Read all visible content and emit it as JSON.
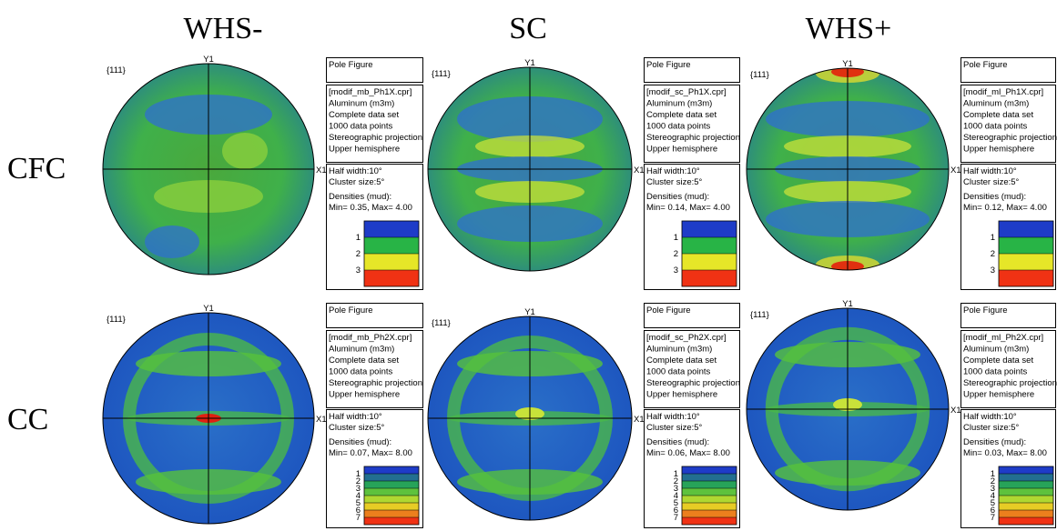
{
  "columns": [
    "WHS-",
    "SC",
    "WHS+"
  ],
  "rows": [
    {
      "label": "CFC",
      "panels": [
        {
          "set_label": "{111}",
          "y_axis": "Y1",
          "x_axis": "X1",
          "title": "Pole Figure",
          "info": [
            "[modif_mb_Ph1X.cpr]",
            "Aluminum (m3m)",
            "Complete data set",
            "1000 data points",
            "Stereographic projection",
            "Upper hemisphere"
          ],
          "params": [
            "Half width:10°",
            "Cluster size:5°"
          ],
          "densities_label": "Densities (mud):",
          "densities": "Min= 0.35, Max= 4.00",
          "legend": [
            1,
            2,
            3
          ]
        },
        {
          "set_label": "{111}",
          "y_axis": "Y1",
          "x_axis": "X1",
          "title": "Pole Figure",
          "info": [
            "[modif_sc_Ph1X.cpr]",
            "Aluminum (m3m)",
            "Complete data set",
            "1000 data points",
            "Stereographic projection",
            "Upper hemisphere"
          ],
          "params": [
            "Half width:10°",
            "Cluster size:5°"
          ],
          "densities_label": "Densities (mud):",
          "densities": "Min= 0.14, Max= 4.00",
          "legend": [
            1,
            2,
            3
          ]
        },
        {
          "set_label": "{111}",
          "y_axis": "Y1",
          "x_axis": "X1",
          "title": "Pole Figure",
          "info": [
            "[modif_ml_Ph1X.cpr]",
            "Aluminum (m3m)",
            "Complete data set",
            "1000 data points",
            "Stereographic projection",
            "Upper hemisphere"
          ],
          "params": [
            "Half width:10°",
            "Cluster size:5°"
          ],
          "densities_label": "Densities (mud):",
          "densities": "Min= 0.12, Max= 4.00",
          "legend": [
            1,
            2,
            3
          ]
        }
      ]
    },
    {
      "label": "CC",
      "panels": [
        {
          "set_label": "{111}",
          "y_axis": "Y1",
          "x_axis": "X1",
          "title": "Pole Figure",
          "info": [
            "[modif_mb_Ph2X.cpr]",
            "Aluminum (m3m)",
            "Complete data set",
            "1000 data points",
            "Stereographic projection",
            "Upper hemisphere"
          ],
          "params": [
            "Half width:10°",
            "Cluster size:5°"
          ],
          "densities_label": "Densities (mud):",
          "densities": "Min= 0.07, Max= 8.00",
          "legend": [
            1,
            2,
            3,
            4,
            5,
            6,
            7
          ]
        },
        {
          "set_label": "{111}",
          "y_axis": "Y1",
          "x_axis": "X1",
          "title": "Pole Figure",
          "info": [
            "[modif_sc_Ph2X.cpr]",
            "Aluminum (m3m)",
            "Complete data set",
            "1000 data points",
            "Stereographic projection",
            "Upper hemisphere"
          ],
          "params": [
            "Half width:10°",
            "Cluster size:5°"
          ],
          "densities_label": "Densities (mud):",
          "densities": "Min= 0.06, Max= 8.00",
          "legend": [
            1,
            2,
            3,
            4,
            5,
            6,
            7
          ]
        },
        {
          "set_label": "{111}",
          "y_axis": "Y1",
          "x_axis": "X1",
          "title": "Pole Figure",
          "info": [
            "[modif_ml_Ph2X.cpr]",
            "Aluminum (m3m)",
            "Complete data set",
            "1000 data points",
            "Stereographic projection",
            "Upper hemisphere"
          ],
          "params": [
            "Half width:10°",
            "Cluster size:5°"
          ],
          "densities_label": "Densities (mud):",
          "densities": "Min= 0.03, Max= 8.00",
          "legend": [
            1,
            2,
            3,
            4,
            5,
            6,
            7
          ]
        }
      ]
    }
  ]
}
